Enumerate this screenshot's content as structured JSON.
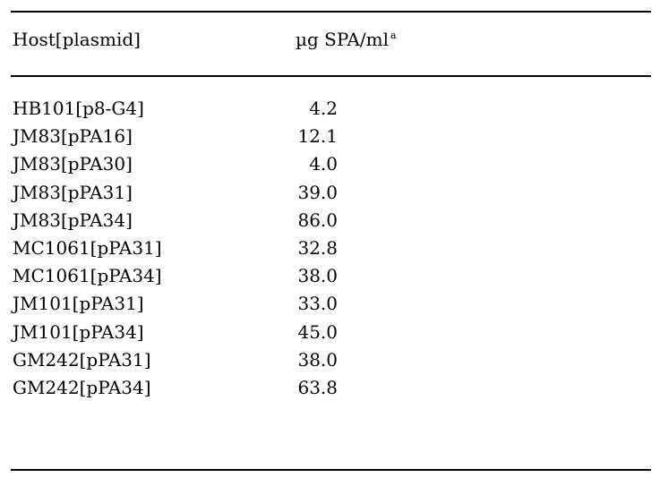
{
  "table": {
    "headers": {
      "host": "Host[plasmid]",
      "value": "µg SPA/ml",
      "value_footnote_marker": "a"
    },
    "rows": [
      {
        "host": "HB101[p8-G4]",
        "value": "4.2"
      },
      {
        "host": "JM83[pPA16]",
        "value": "12.1"
      },
      {
        "host": "JM83[pPA30]",
        "value": "4.0"
      },
      {
        "host": "JM83[pPA31]",
        "value": "39.0"
      },
      {
        "host": "JM83[pPA34]",
        "value": "86.0"
      },
      {
        "host": "MC1061[pPA31]",
        "value": "32.8"
      },
      {
        "host": "MC1061[pPA34]",
        "value": "38.0"
      },
      {
        "host": "JM101[pPA31]",
        "value": "33.0"
      },
      {
        "host": "JM101[pPA34]",
        "value": "45.0"
      },
      {
        "host": "GM242[pPA31]",
        "value": "38.0"
      },
      {
        "host": "GM242[pPA34]",
        "value": "63.8"
      }
    ]
  }
}
